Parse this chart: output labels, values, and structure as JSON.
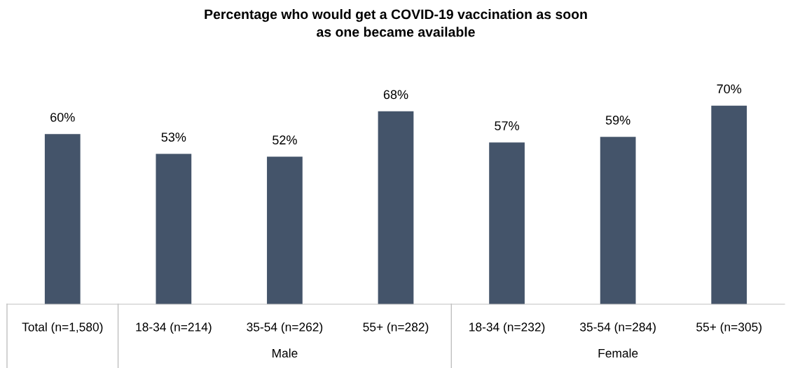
{
  "chart_data": {
    "type": "bar",
    "title": "Percentage who would get a COVID-19 vaccination as soon\nas one became available",
    "categories": [
      "Total (n=1,580)",
      "18-34 (n=214)",
      "35-54 (n=262)",
      "55+ (n=282)",
      "18-34 (n=232)",
      "35-54 (n=284)",
      "55+ (n=305)"
    ],
    "values": [
      60,
      53,
      52,
      68,
      57,
      59,
      70
    ],
    "value_labels": [
      "60%",
      "53%",
      "52%",
      "68%",
      "57%",
      "59%",
      "70%"
    ],
    "color": "#44546a",
    "annotations": [
      "Male",
      "Female"
    ]
  }
}
